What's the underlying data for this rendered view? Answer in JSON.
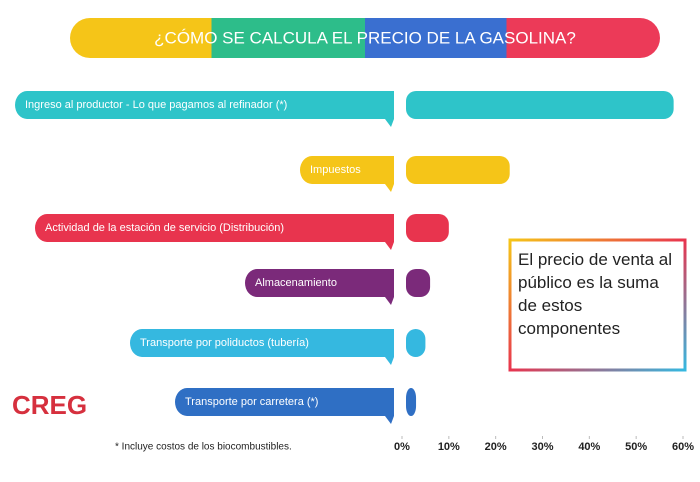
{
  "chart_data": {
    "type": "bar",
    "orientation": "horizontal",
    "title": "¿CÓMO SE CALCULA EL PRECIO DE LA GASOLINA?",
    "categories": [
      "Ingreso al productor - Lo que pagamos al refinador (*)",
      "Impuestos",
      "Actividad de la estación de servicio (Distribución)",
      "Almacenamiento",
      "Transporte por poliductos (tubería)",
      "Transporte por carretera (*)"
    ],
    "values": [
      58,
      23,
      10,
      6,
      5,
      3
    ],
    "colors": [
      "#2ec4c9",
      "#f5c518",
      "#e8344e",
      "#7b2a7a",
      "#35b8e0",
      "#2f6fc4"
    ],
    "xlim": [
      0,
      60
    ],
    "xticks": [
      {
        "value": 0,
        "label": "0%"
      },
      {
        "value": 10,
        "label": "10%"
      },
      {
        "value": 20,
        "label": "20%"
      },
      {
        "value": 30,
        "label": "30%"
      },
      {
        "value": 40,
        "label": "40%"
      },
      {
        "value": 50,
        "label": "50%"
      },
      {
        "value": 60,
        "label": "60%"
      }
    ],
    "annotation": "El precio de venta al público es la suma de estos componentes",
    "footnote": "* Incluye costos de los biocombustibles.",
    "logo": "CREG"
  }
}
